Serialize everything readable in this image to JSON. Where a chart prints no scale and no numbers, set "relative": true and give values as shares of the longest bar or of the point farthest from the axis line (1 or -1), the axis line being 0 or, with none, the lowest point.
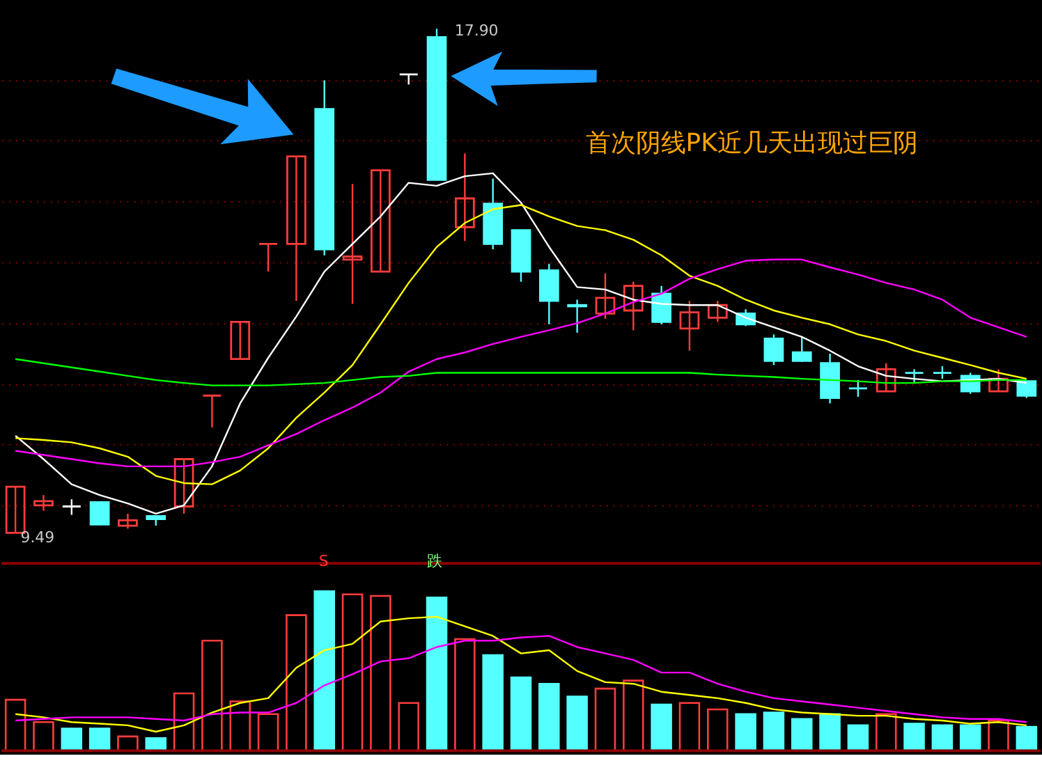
{
  "chart_data": [
    {
      "type": "candlestick",
      "categories": [
        null,
        null,
        null,
        null,
        null,
        null,
        null,
        null,
        null,
        null,
        null,
        null,
        null,
        null,
        null,
        null,
        null,
        null,
        null,
        null,
        null,
        null,
        null,
        null,
        null,
        null,
        null,
        null,
        null,
        null,
        null,
        null,
        null,
        null,
        null,
        null,
        null
      ],
      "ohlc": [
        [
          9.49,
          10.26,
          9.49,
          10.26
        ],
        [
          9.95,
          10.12,
          9.86,
          10.02
        ],
        [
          9.93,
          10.05,
          9.79,
          9.93
        ],
        [
          10.0,
          10.0,
          9.63,
          9.63
        ],
        [
          9.61,
          9.81,
          9.56,
          9.7
        ],
        [
          9.77,
          9.77,
          9.61,
          9.72
        ],
        [
          9.93,
          10.72,
          9.81,
          10.72
        ],
        [
          11.78,
          11.78,
          11.25,
          11.78
        ],
        [
          12.39,
          13.01,
          12.39,
          13.01
        ],
        [
          14.31,
          14.31,
          13.85,
          14.31
        ],
        [
          14.31,
          15.77,
          13.36,
          15.77
        ],
        [
          16.56,
          17.04,
          14.12,
          14.22
        ],
        [
          14.05,
          15.31,
          13.31,
          14.1
        ],
        [
          13.85,
          15.54,
          13.85,
          15.54
        ],
        [
          17.14,
          17.14,
          16.97,
          17.14
        ],
        [
          17.76,
          17.9,
          15.38,
          15.38
        ],
        [
          14.59,
          15.82,
          14.36,
          15.07
        ],
        [
          14.98,
          15.4,
          14.22,
          14.31
        ],
        [
          14.54,
          14.54,
          13.68,
          13.85
        ],
        [
          13.87,
          13.98,
          12.97,
          13.36
        ],
        [
          13.29,
          13.38,
          12.83,
          13.27
        ],
        [
          13.15,
          13.82,
          13.06,
          13.41
        ],
        [
          13.2,
          13.68,
          12.87,
          13.61
        ],
        [
          13.48,
          13.61,
          12.97,
          13.01
        ],
        [
          12.9,
          13.36,
          12.53,
          13.17
        ],
        [
          13.08,
          13.36,
          13.01,
          13.29
        ],
        [
          13.15,
          13.22,
          12.94,
          12.97
        ],
        [
          12.73,
          12.8,
          12.29,
          12.36
        ],
        [
          12.5,
          12.76,
          12.34,
          12.36
        ],
        [
          12.32,
          12.48,
          11.65,
          11.74
        ],
        [
          11.9,
          12.04,
          11.76,
          11.9
        ],
        [
          11.85,
          12.32,
          11.85,
          12.22
        ],
        [
          12.16,
          12.22,
          11.99,
          12.16
        ],
        [
          12.16,
          12.27,
          12.06,
          12.16
        ],
        [
          12.11,
          12.16,
          11.81,
          11.85
        ],
        [
          11.85,
          12.22,
          11.85,
          12.06
        ],
        [
          12.02,
          12.02,
          11.74,
          11.78
        ]
      ],
      "colors": [
        "#ff3c3c",
        "#ff3c3c",
        "#ffffff",
        "#54ffff",
        "#ff3c3c",
        "#54ffff",
        "#ff3c3c",
        "#ff3c3c",
        "#ff3c3c",
        "#ff3c3c",
        "#ff3c3c",
        "#54ffff",
        "#ff3c3c",
        "#ff3c3c",
        "#ffffff",
        "#54ffff",
        "#ff3c3c",
        "#54ffff",
        "#54ffff",
        "#54ffff",
        "#54ffff",
        "#ff3c3c",
        "#ff3c3c",
        "#54ffff",
        "#ff3c3c",
        "#ff3c3c",
        "#54ffff",
        "#54ffff",
        "#54ffff",
        "#54ffff",
        "#54ffff",
        "#ff3c3c",
        "#54ffff",
        "#54ffff",
        "#54ffff",
        "#ff3c3c",
        "#54ffff"
      ],
      "series": [
        {
          "type": "line",
          "color": "#ffffff",
          "values": [
            11.11,
            10.72,
            10.3,
            10.12,
            9.98,
            9.81,
            9.95,
            10.6,
            11.65,
            12.41,
            13.1,
            13.85,
            14.31,
            14.77,
            15.33,
            15.28,
            15.44,
            15.49,
            15.0,
            14.26,
            13.59,
            13.55,
            13.38,
            13.31,
            13.29,
            13.29,
            13.08,
            12.92,
            12.76,
            12.53,
            12.27,
            12.11,
            12.06,
            12.02,
            12.04,
            12.06,
            11.99
          ]
        },
        {
          "type": "line",
          "color": "#ffff00",
          "values": [
            11.07,
            11.04,
            11.0,
            10.9,
            10.76,
            10.44,
            10.32,
            10.3,
            10.53,
            10.9,
            11.41,
            11.83,
            12.29,
            12.97,
            13.66,
            14.26,
            14.66,
            14.89,
            14.96,
            14.77,
            14.61,
            14.54,
            14.38,
            14.12,
            13.78,
            13.61,
            13.38,
            13.2,
            13.08,
            12.97,
            12.8,
            12.69,
            12.53,
            12.41,
            12.29,
            12.16,
            12.06
          ]
        },
        {
          "type": "line",
          "color": "#ff00ff",
          "values": [
            10.86,
            10.79,
            10.72,
            10.65,
            10.6,
            10.6,
            10.6,
            10.67,
            10.76,
            10.95,
            11.14,
            11.37,
            11.58,
            11.83,
            12.18,
            12.39,
            12.5,
            12.64,
            12.76,
            12.87,
            12.99,
            13.15,
            13.34,
            13.48,
            13.73,
            13.89,
            14.03,
            14.05,
            14.05,
            13.92,
            13.8,
            13.66,
            13.55,
            13.38,
            13.08,
            12.92,
            12.76
          ]
        },
        {
          "type": "line",
          "color": "#00ff00",
          "values": [
            12.39,
            12.32,
            12.25,
            12.18,
            12.11,
            12.04,
            11.99,
            11.95,
            11.95,
            11.95,
            11.97,
            11.99,
            12.04,
            12.09,
            12.11,
            12.16,
            12.16,
            12.16,
            12.16,
            12.16,
            12.16,
            12.16,
            12.16,
            12.16,
            12.16,
            12.13,
            12.11,
            12.09,
            12.06,
            12.04,
            12.02,
            11.99,
            11.99,
            12.02,
            12.02,
            12.04,
            12.04
          ]
        }
      ],
      "yticks": [
        {
          "value": 9.95,
          "label": null
        },
        {
          "value": 10.97,
          "label": null
        },
        {
          "value": 11.97,
          "label": null
        },
        {
          "value": 12.99,
          "label": null
        },
        {
          "value": 14.01,
          "label": null
        },
        {
          "value": 15.03,
          "label": null
        },
        {
          "value": 16.05,
          "label": null
        },
        {
          "value": 17.04,
          "label": null
        }
      ],
      "grid": "y",
      "tick_labels": false,
      "annotations": [
        "首次阴线PK近几天出现过巨阴",
        "17.90",
        "9.49"
      ]
    },
    {
      "type": "bar",
      "relative": true,
      "categories": [
        null,
        null,
        null,
        null,
        null,
        null,
        null,
        null,
        null,
        null,
        null,
        null,
        null,
        null,
        null,
        null,
        null,
        null,
        null,
        null,
        null,
        null,
        null,
        null,
        null,
        null,
        null,
        null,
        null,
        null,
        null,
        null,
        null,
        null,
        null,
        null,
        null
      ],
      "series": [
        {
          "type": "bar",
          "values": [
            0.32,
            0.18,
            0.14,
            0.14,
            0.09,
            0.08,
            0.36,
            0.69,
            0.31,
            0.23,
            0.85,
            1,
            0.98,
            0.97,
            0.3,
            0.96,
            0.7,
            0.6,
            0.46,
            0.42,
            0.34,
            0.39,
            0.44,
            0.29,
            0.3,
            0.26,
            0.23,
            0.24,
            0.2,
            0.23,
            0.16,
            0.23,
            0.17,
            0.16,
            0.16,
            0.19,
            0.15
          ],
          "colors": [
            "#ff3c3c",
            "#ff3c3c",
            "#54ffff",
            "#54ffff",
            "#ff3c3c",
            "#54ffff",
            "#ff3c3c",
            "#ff3c3c",
            "#ff3c3c",
            "#ff3c3c",
            "#ff3c3c",
            "#54ffff",
            "#ff3c3c",
            "#ff3c3c",
            "#ff3c3c",
            "#54ffff",
            "#ff3c3c",
            "#54ffff",
            "#54ffff",
            "#54ffff",
            "#54ffff",
            "#ff3c3c",
            "#ff3c3c",
            "#54ffff",
            "#ff3c3c",
            "#ff3c3c",
            "#54ffff",
            "#54ffff",
            "#54ffff",
            "#54ffff",
            "#54ffff",
            "#ff3c3c",
            "#54ffff",
            "#54ffff",
            "#54ffff",
            "#ff3c3c",
            "#54ffff"
          ]
        },
        {
          "type": "line",
          "color": "#ffff00",
          "values": [
            0.23,
            0.21,
            0.18,
            0.17,
            0.16,
            0.12,
            0.16,
            0.24,
            0.3,
            0.33,
            0.52,
            0.63,
            0.67,
            0.81,
            0.83,
            0.84,
            0.78,
            0.72,
            0.61,
            0.63,
            0.5,
            0.43,
            0.42,
            0.37,
            0.35,
            0.33,
            0.3,
            0.26,
            0.24,
            0.23,
            0.22,
            0.22,
            0.2,
            0.19,
            0.17,
            0.18,
            0.16
          ]
        },
        {
          "type": "line",
          "color": "#ff00ff",
          "values": [
            0.19,
            0.2,
            0.21,
            0.21,
            0.21,
            0.2,
            0.19,
            0.23,
            0.24,
            0.24,
            0.3,
            0.41,
            0.48,
            0.56,
            0.58,
            0.65,
            0.69,
            0.69,
            0.71,
            0.72,
            0.65,
            0.61,
            0.57,
            0.49,
            0.49,
            0.42,
            0.37,
            0.33,
            0.31,
            0.29,
            0.27,
            0.25,
            0.23,
            0.21,
            0.2,
            0.2,
            0.18
          ]
        }
      ],
      "annotations": [
        "S",
        "跌"
      ]
    }
  ]
}
